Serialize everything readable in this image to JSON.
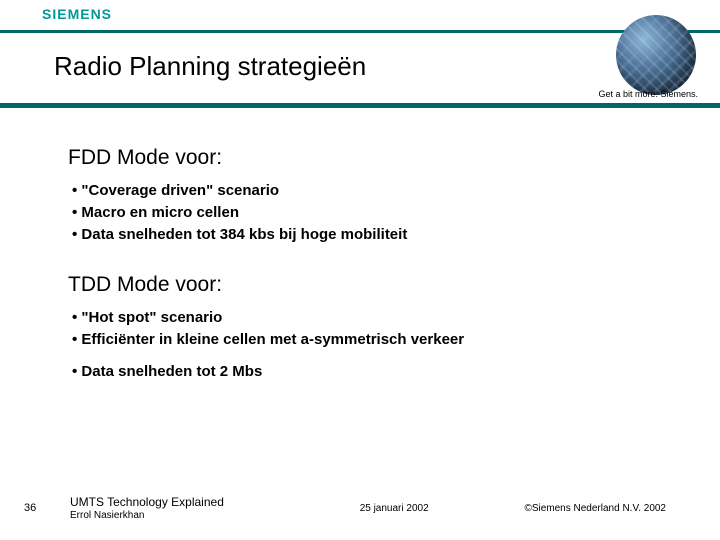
{
  "header": {
    "logo_text": "SIEMENS",
    "slide_title": "Radio Planning strategieën",
    "tagline": "Get a bit more. Siemens."
  },
  "sections": [
    {
      "heading": "FDD Mode voor:",
      "bullets": [
        "\"Coverage driven\" scenario",
        "Macro en micro cellen",
        "Data snelheden tot 384 kbs bij hoge mobiliteit"
      ]
    },
    {
      "heading": "TDD Mode voor:",
      "bullets": [
        "\"Hot spot\" scenario",
        "Efficiënter in kleine cellen met a-symmetrisch verkeer",
        "Data snelheden tot 2 Mbs"
      ]
    }
  ],
  "footer": {
    "page_number": "36",
    "presentation_title": "UMTS Technology Explained",
    "author": "Errol Nasierkhan",
    "date": "25 januari 2002",
    "copyright": "©Siemens Nederland N.V. 2002"
  },
  "styling": {
    "accent_color": "#006666",
    "logo_color": "#009999",
    "background": "#ffffff",
    "title_fontsize": 26,
    "heading_fontsize": 21,
    "bullet_fontsize": 15,
    "bullet_fontweight": "bold",
    "footer_fontsize": 10
  }
}
